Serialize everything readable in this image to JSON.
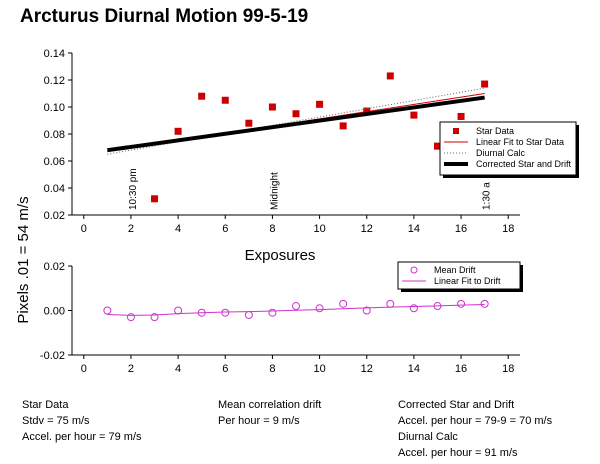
{
  "chart_data": [
    {
      "type": "scatter",
      "title": "Arcturus Diurnal Motion 99-5-19",
      "ylabel": "Pixels .01 = 54 m/s",
      "xlim": [
        -0.5,
        18.5
      ],
      "ylim": [
        0.02,
        0.14
      ],
      "xticks": [
        "0",
        "2",
        "4",
        "6",
        "8",
        "10",
        "12",
        "14",
        "16",
        "18"
      ],
      "yticks": [
        "0.02",
        "0.04",
        "0.06",
        "0.08",
        "0.10",
        "0.12",
        "0.14"
      ],
      "grid": false,
      "legend_position": "right",
      "series": [
        {
          "name": "Star Data",
          "kind": "points",
          "color": "#cc0000",
          "x": [
            3,
            4,
            5,
            6,
            7,
            8,
            9,
            10,
            11,
            12,
            13,
            14,
            15,
            16,
            17
          ],
          "y": [
            0.032,
            0.082,
            0.108,
            0.105,
            0.088,
            0.1,
            0.095,
            0.102,
            0.086,
            0.097,
            0.123,
            0.094,
            0.071,
            0.093,
            0.117
          ]
        },
        {
          "name": "Linear Fit to Star Data",
          "kind": "line",
          "color": "#cc0000",
          "x": [
            1,
            17
          ],
          "y": [
            0.067,
            0.11
          ]
        },
        {
          "name": "Diurnal Calc",
          "kind": "dotted",
          "color": "#666666",
          "x": [
            1,
            17
          ],
          "y": [
            0.065,
            0.114
          ]
        },
        {
          "name": "Corrected Star and Drift",
          "kind": "thick",
          "color": "#000000",
          "x": [
            1,
            17
          ],
          "y": [
            0.068,
            0.107
          ]
        }
      ],
      "annotations": [
        {
          "text": "10:30 pm",
          "x": 2
        },
        {
          "text": "Midnight",
          "x": 8
        },
        {
          "text": "1:30 a",
          "x": 17
        }
      ]
    },
    {
      "type": "scatter",
      "xlabel": "Exposures",
      "xlim": [
        -0.5,
        18.5
      ],
      "ylim": [
        -0.02,
        0.02
      ],
      "xticks": [
        "0",
        "2",
        "4",
        "6",
        "8",
        "10",
        "12",
        "14",
        "16",
        "18"
      ],
      "yticks": [
        "-0.02",
        "0.00",
        "0.02"
      ],
      "grid": false,
      "legend_position": "top-right",
      "series": [
        {
          "name": "Mean Drift",
          "kind": "circles",
          "color": "#cc33cc",
          "x": [
            1,
            2,
            3,
            4,
            5,
            6,
            7,
            8,
            9,
            10,
            11,
            12,
            13,
            14,
            15,
            16,
            17
          ],
          "y": [
            0.0,
            -0.003,
            -0.003,
            0.0,
            -0.001,
            -0.001,
            -0.002,
            -0.001,
            0.002,
            0.001,
            0.003,
            0.0,
            0.003,
            0.001,
            0.002,
            0.003,
            0.003
          ]
        },
        {
          "name": "Linear Fit to Drift",
          "kind": "line",
          "color": "#cc33cc",
          "x": [
            1,
            2,
            3,
            4,
            5,
            6,
            7,
            8,
            9,
            10,
            11,
            12,
            13,
            14,
            15,
            16,
            17
          ],
          "y": [
            -0.0018,
            -0.0022,
            -0.002,
            -0.0014,
            -0.001,
            -0.0007,
            -0.0005,
            -0.0002,
            0.0001,
            0.0004,
            0.0008,
            0.0012,
            0.0015,
            0.0018,
            0.0021,
            0.0024,
            0.0027
          ]
        }
      ]
    }
  ],
  "footer": {
    "star_data": {
      "heading": "Star Data",
      "line1": "Stdv = 75 m/s",
      "line2": "Accel. per hour = 79 m/s"
    },
    "correlation": {
      "heading": "Mean correlation drift",
      "line1": "Per hour = 9 m/s"
    },
    "corrected": {
      "heading": "Corrected Star and Drift",
      "line1": "Accel. per hour = 79-9 = 70 m/s"
    },
    "diurnal": {
      "heading": "Diurnal Calc",
      "line1": "Accel. per hour = 91 m/s"
    }
  }
}
